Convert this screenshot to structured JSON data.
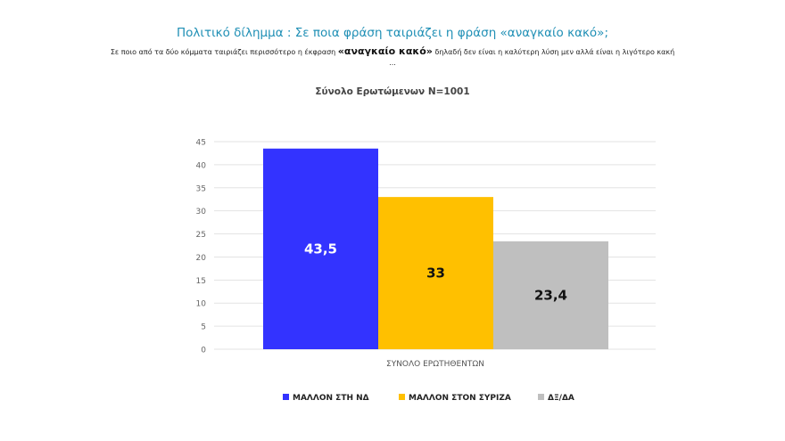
{
  "header": {
    "title": "Πολιτικό δίλημμα : Σε ποια φράση ταιριάζει η φράση «αναγκαίο κακό»;",
    "subtitle_pre": "Σε ποιο από τα δύο κόμματα ταιριάζει περισσότερο η έκφραση ",
    "subtitle_bold": "«αναγκαίο κακό»",
    "subtitle_post": " δηλαδή δεν είναι η καλύτερη λύση μεν αλλά είναι η λιγότερο κακή ...",
    "sample": "Σύνολο Ερωτώμενων N=1001"
  },
  "chart_data": {
    "type": "bar",
    "categories": [
      "ΣΥΝΟΛΟ ΕΡΩΤΗΘΕΝΤΩΝ"
    ],
    "series": [
      {
        "name": "ΜΑΛΛΟΝ ΣΤΗ ΝΔ",
        "values": [
          43.5
        ],
        "label": "43,5",
        "color": "#3333ff",
        "label_color": "#ffffff"
      },
      {
        "name": "ΜΑΛΛΟΝ ΣΤΟΝ ΣΥΡΙΖΑ",
        "values": [
          33
        ],
        "label": "33",
        "color": "#ffc000",
        "label_color": "#111111"
      },
      {
        "name": "ΔΞ/ΔΑ",
        "values": [
          23.4
        ],
        "label": "23,4",
        "color": "#bfbfbf",
        "label_color": "#111111"
      }
    ],
    "ylim": [
      0,
      45
    ],
    "yticks": [
      "0",
      "5",
      "10",
      "15",
      "20",
      "25",
      "30",
      "35",
      "40",
      "45"
    ],
    "grid": true,
    "legend": "bottom"
  }
}
